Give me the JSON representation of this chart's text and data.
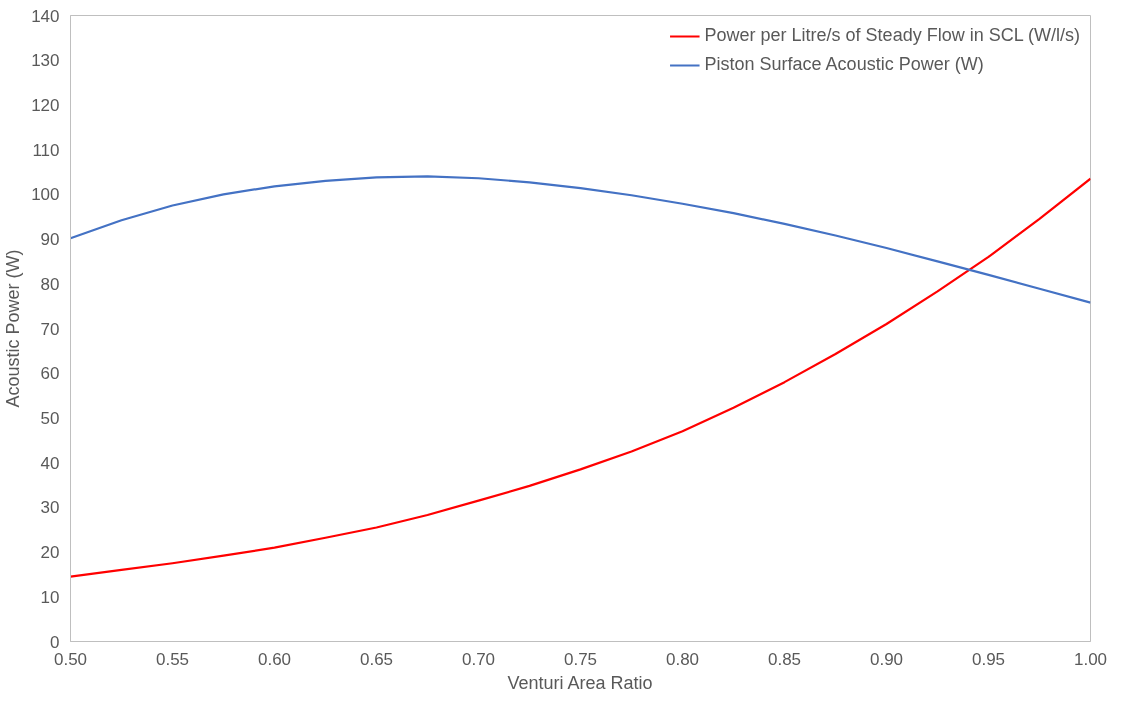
{
  "chart_data": {
    "type": "line",
    "xlabel": "Venturi Area Ratio",
    "ylabel": "Acoustic Power (W)",
    "x": [
      0.5,
      0.525,
      0.55,
      0.575,
      0.6,
      0.625,
      0.65,
      0.675,
      0.7,
      0.725,
      0.75,
      0.775,
      0.8,
      0.825,
      0.85,
      0.875,
      0.9,
      0.925,
      0.95,
      0.975,
      1.0
    ],
    "series": [
      {
        "name": "Power per Litre/s of Steady Flow in SCL (W/l/s)",
        "color": "#ff0000",
        "values": [
          14.5,
          16,
          17.5,
          19.2,
          21,
          23.2,
          25.5,
          28.3,
          31.5,
          34.8,
          38.5,
          42.5,
          47,
          52.3,
          58,
          64.3,
          71,
          78.3,
          86,
          94.5,
          103.5
        ]
      },
      {
        "name": "Piston Surface Acoustic Power (W)",
        "color": "#4472c4",
        "values": [
          90.2,
          94.2,
          97.5,
          100,
          101.8,
          103,
          103.8,
          104,
          103.6,
          102.7,
          101.4,
          99.8,
          97.9,
          95.8,
          93.4,
          90.8,
          88,
          85,
          82,
          78.9,
          75.8
        ]
      }
    ],
    "xlim": [
      0.5,
      1.0
    ],
    "xticks": [
      {
        "value": 0.5,
        "label": "0.50"
      },
      {
        "value": 0.55,
        "label": "0.55"
      },
      {
        "value": 0.6,
        "label": "0.60"
      },
      {
        "value": 0.65,
        "label": "0.65"
      },
      {
        "value": 0.7,
        "label": "0.70"
      },
      {
        "value": 0.75,
        "label": "0.75"
      },
      {
        "value": 0.8,
        "label": "0.80"
      },
      {
        "value": 0.85,
        "label": "0.85"
      },
      {
        "value": 0.9,
        "label": "0.90"
      },
      {
        "value": 0.95,
        "label": "0.95"
      },
      {
        "value": 1.0,
        "label": "1.00"
      }
    ],
    "ylim": [
      0,
      140
    ],
    "yticks": [
      0,
      10,
      20,
      30,
      40,
      50,
      60,
      70,
      80,
      90,
      100,
      110,
      120,
      130,
      140
    ],
    "grid": false,
    "legend": "top right",
    "marker": "none",
    "line_style": "solid"
  }
}
